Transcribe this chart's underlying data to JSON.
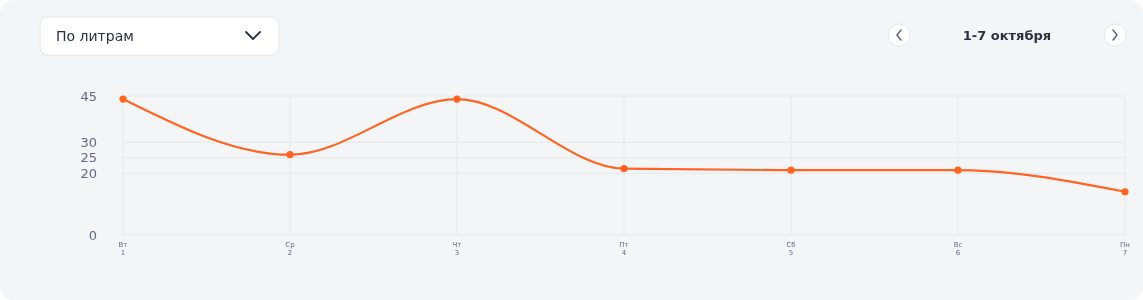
{
  "chart_data": {
    "type": "line",
    "annotations": [
      "По литрам",
      "1-7 октября"
    ],
    "categories": [
      "Вт 1",
      "Ср 2",
      "Чт 3",
      "Пт 4",
      "Сб 5",
      "Вс 6",
      "Пн 7"
    ],
    "series": [
      {
        "color": "#ff6422",
        "values": [
          44,
          26,
          44,
          21.5,
          21,
          21,
          14
        ]
      }
    ],
    "ylim": [
      0,
      45
    ],
    "yticks": [
      0,
      20,
      25,
      30,
      45
    ],
    "grid": true,
    "marker": "circle",
    "line_style": "solid"
  }
}
